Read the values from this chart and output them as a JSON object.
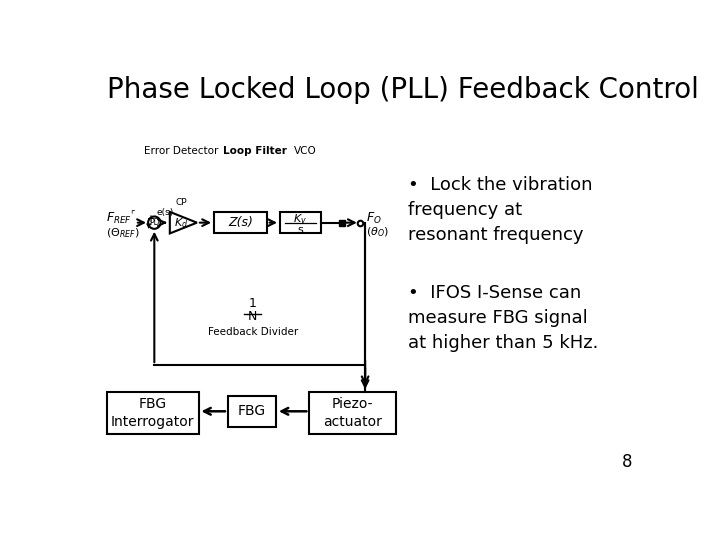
{
  "title": "Phase Locked Loop (PLL) Feedback Control",
  "title_fontsize": 20,
  "bullet1": "Lock the vibration\nfrequency at\nresonant frequency",
  "bullet2": "IFOS I-Sense can\nmeasure FBG signal\nat higher than 5 kHz.",
  "bullet_fontsize": 13,
  "page_number": "8",
  "bg_color": "#ffffff",
  "text_color": "#000000"
}
